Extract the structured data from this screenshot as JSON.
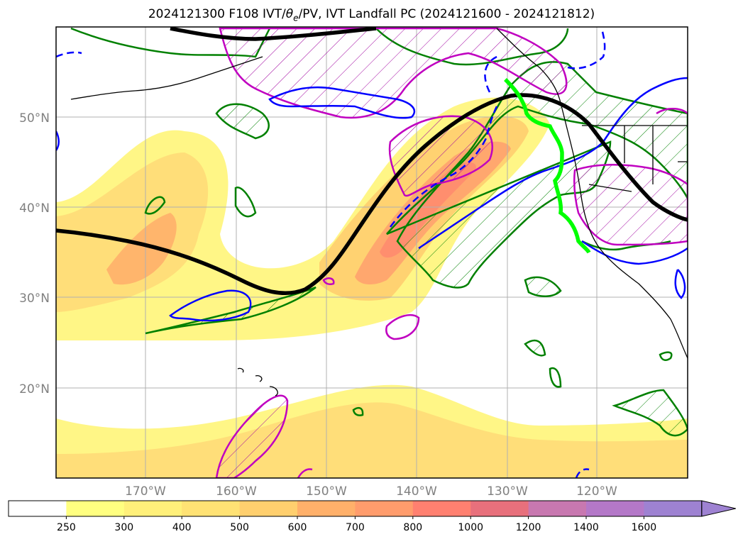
{
  "title": {
    "prefix": "2024121300 F108 IVT/",
    "theta": "θ",
    "theta_sub": "e",
    "suffix": "/PV, IVT Landfall PC (2024121600 - 2024121812)"
  },
  "latitude_labels": [
    "50°N",
    "40°N",
    "30°N",
    "20°N"
  ],
  "longitude_labels": [
    "170°W",
    "160°W",
    "150°W",
    "140°W",
    "130°W",
    "120°W"
  ],
  "colorbar": {
    "ticks": [
      "250",
      "300",
      "400",
      "500",
      "600",
      "700",
      "800",
      "1000",
      "1200",
      "1400",
      "1600"
    ],
    "colors": [
      "#ffffff",
      "#ffff80",
      "#fff07a",
      "#ffe274",
      "#ffcf6e",
      "#ffb06a",
      "#ff9c6c",
      "#ff8070",
      "#e8707c",
      "#c878b0",
      "#b478c8",
      "#9e82d2"
    ],
    "extend": "max"
  },
  "colors": {
    "ivt_fill_low": "#fff680",
    "ivt_fill_mid": "#ffd873",
    "ivt_fill_high": "#ffa46e",
    "ivt_core": "#ff8c6e",
    "jet_line": "#000000",
    "theta_e_contour": "#0000ff",
    "pv_contour": "#008000",
    "pv_magenta": "#c000c0",
    "landfall_line": "#00ff00",
    "coast": "#000000",
    "grid": "#b0b0b0"
  }
}
